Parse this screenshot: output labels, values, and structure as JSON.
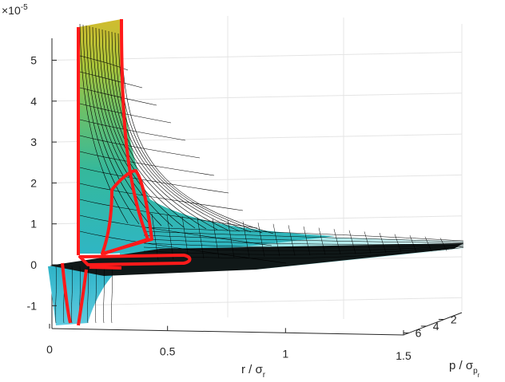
{
  "chart_data": {
    "type": "surface3d",
    "title": "",
    "exponent_label": "×10",
    "exponent_power": "-5",
    "xlabel": {
      "main": "r / σ",
      "sub": "r"
    },
    "ylabel": {
      "main": "p / σ",
      "sub": "p",
      "subsub": "r"
    },
    "xticks": [
      "0",
      "0.5",
      "1",
      "1.5"
    ],
    "yticks": [
      "2",
      "4",
      "6"
    ],
    "zticks": [
      "-1",
      "0",
      "1",
      "2",
      "3",
      "4",
      "5"
    ],
    "xlim": [
      0,
      1.5
    ],
    "ylim": [
      0,
      4.5
    ],
    "zlim": [
      -1.5,
      5.6
    ],
    "grid": true,
    "colormap": [
      "#2fb6c4",
      "#34b89c",
      "#6ac06a",
      "#a9c43a",
      "#d1bc2f"
    ],
    "mesh_color": "#000000",
    "highlight_color": "#ff1a1a",
    "description_free": true
  }
}
